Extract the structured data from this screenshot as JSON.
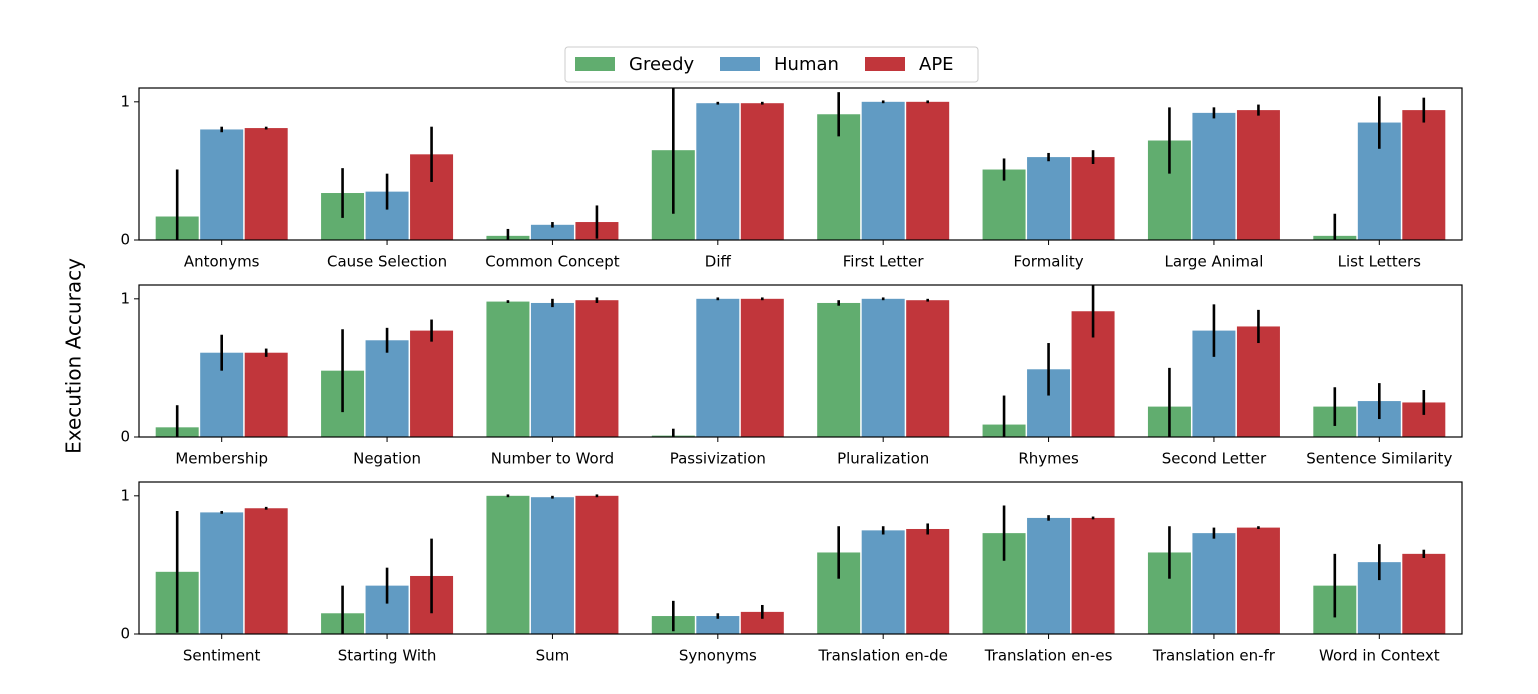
{
  "chart_data": [
    {
      "type": "bar",
      "ylim": [
        0,
        1.1
      ],
      "yticks": [
        0,
        1
      ],
      "categories": [
        "Antonyms",
        "Cause Selection",
        "Common Concept",
        "Diff",
        "First Letter",
        "Formality",
        "Large Animal",
        "List Letters"
      ],
      "series": [
        {
          "name": "Greedy",
          "color": "#61ad6f",
          "values": [
            0.17,
            0.34,
            0.03,
            0.65,
            0.91,
            0.51,
            0.72,
            0.03
          ],
          "errors": [
            0.34,
            0.18,
            0.05,
            0.46,
            0.16,
            0.08,
            0.24,
            0.16
          ]
        },
        {
          "name": "Human",
          "color": "#619bc3",
          "values": [
            0.8,
            0.35,
            0.11,
            0.99,
            1.0,
            0.6,
            0.92,
            0.85
          ],
          "errors": [
            0.02,
            0.13,
            0.02,
            0.01,
            0.01,
            0.03,
            0.04,
            0.19
          ]
        },
        {
          "name": "APE",
          "color": "#c1363b",
          "values": [
            0.81,
            0.62,
            0.13,
            0.99,
            1.0,
            0.6,
            0.94,
            0.94
          ],
          "errors": [
            0.01,
            0.2,
            0.12,
            0.01,
            0.01,
            0.05,
            0.04,
            0.09
          ]
        }
      ]
    },
    {
      "type": "bar",
      "ylim": [
        0,
        1.1
      ],
      "yticks": [
        0,
        1
      ],
      "ylabel": "Execution Accuracy",
      "categories": [
        "Membership",
        "Negation",
        "Number to Word",
        "Passivization",
        "Pluralization",
        "Rhymes",
        "Second Letter",
        "Sentence Similarity"
      ],
      "series": [
        {
          "name": "Greedy",
          "color": "#61ad6f",
          "values": [
            0.07,
            0.48,
            0.98,
            0.01,
            0.97,
            0.09,
            0.22,
            0.22
          ],
          "errors": [
            0.16,
            0.3,
            0.01,
            0.05,
            0.02,
            0.21,
            0.28,
            0.14
          ]
        },
        {
          "name": "Human",
          "color": "#619bc3",
          "values": [
            0.61,
            0.7,
            0.97,
            1.0,
            1.0,
            0.49,
            0.77,
            0.26
          ],
          "errors": [
            0.13,
            0.09,
            0.03,
            0.01,
            0.01,
            0.19,
            0.19,
            0.13
          ]
        },
        {
          "name": "APE",
          "color": "#c1363b",
          "values": [
            0.61,
            0.77,
            0.99,
            1.0,
            0.99,
            0.91,
            0.8,
            0.25
          ],
          "errors": [
            0.03,
            0.08,
            0.02,
            0.01,
            0.01,
            0.19,
            0.12,
            0.09
          ]
        }
      ]
    },
    {
      "type": "bar",
      "ylim": [
        0,
        1.1
      ],
      "yticks": [
        0,
        1
      ],
      "categories": [
        "Sentiment",
        "Starting With",
        "Sum",
        "Synonyms",
        "Translation en-de",
        "Translation en-es",
        "Translation en-fr",
        "Word in Context"
      ],
      "series": [
        {
          "name": "Greedy",
          "color": "#61ad6f",
          "values": [
            0.45,
            0.15,
            1.0,
            0.13,
            0.59,
            0.73,
            0.59,
            0.35
          ],
          "errors": [
            0.44,
            0.2,
            0.01,
            0.11,
            0.19,
            0.2,
            0.19,
            0.23
          ]
        },
        {
          "name": "Human",
          "color": "#619bc3",
          "values": [
            0.88,
            0.35,
            0.99,
            0.13,
            0.75,
            0.84,
            0.73,
            0.52
          ],
          "errors": [
            0.01,
            0.13,
            0.01,
            0.02,
            0.03,
            0.02,
            0.04,
            0.13
          ]
        },
        {
          "name": "APE",
          "color": "#c1363b",
          "values": [
            0.91,
            0.42,
            1.0,
            0.16,
            0.76,
            0.84,
            0.77,
            0.58
          ],
          "errors": [
            0.01,
            0.27,
            0.01,
            0.05,
            0.04,
            0.01,
            0.01,
            0.03
          ]
        }
      ]
    }
  ]
}
